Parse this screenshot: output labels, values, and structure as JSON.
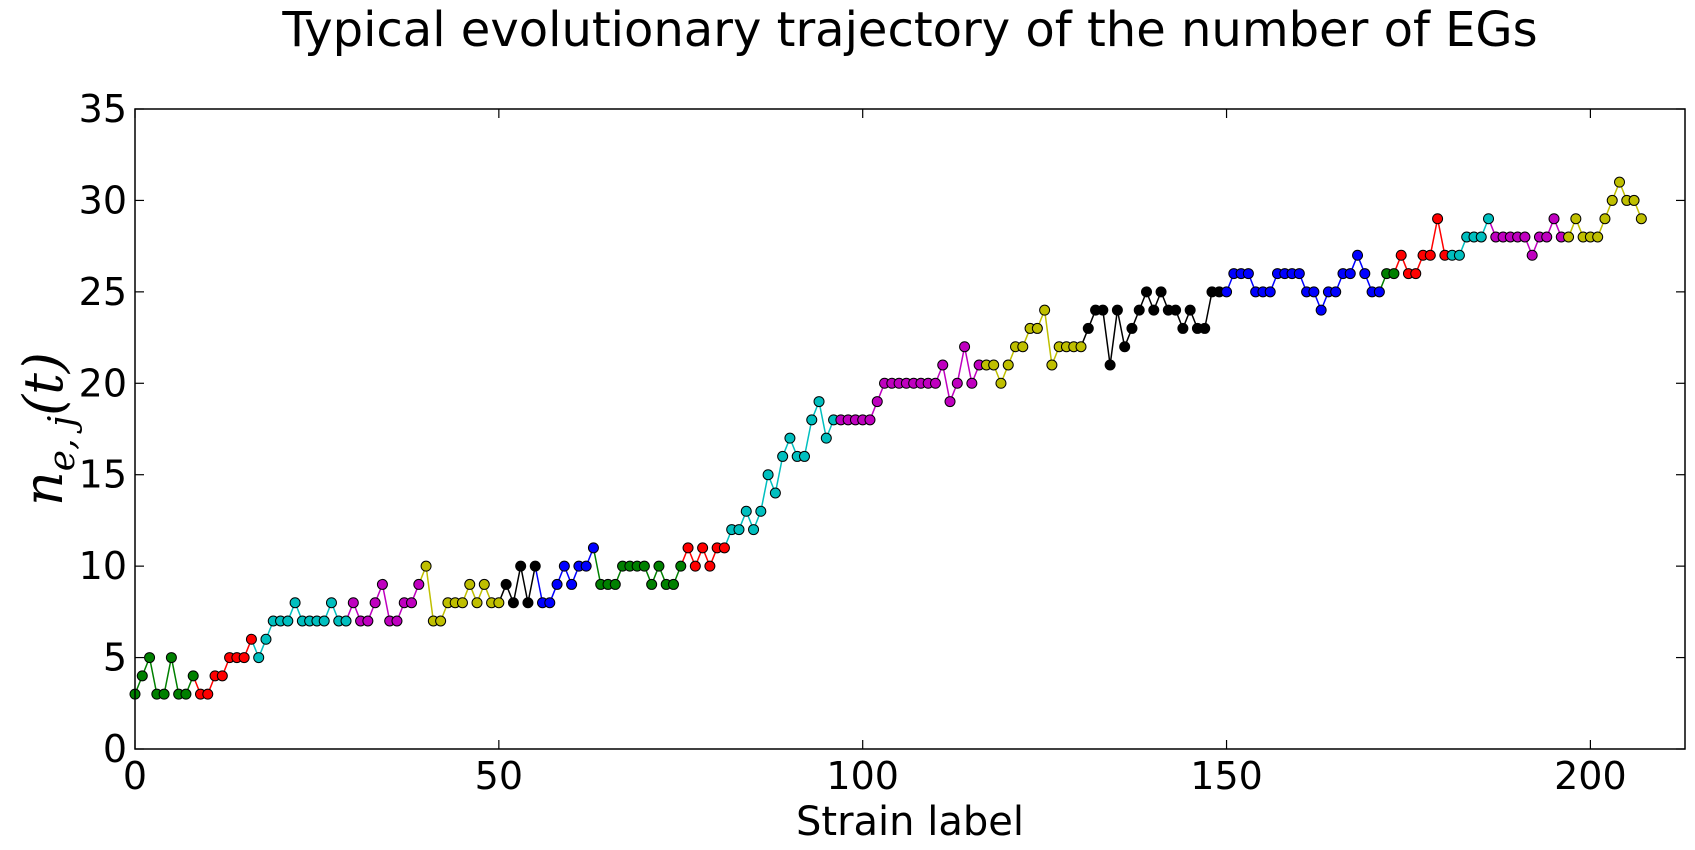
{
  "chart_data": {
    "type": "line",
    "title": "Typical evolutionary trajectory of the number of EGs",
    "xlabel": "Strain label",
    "ylabel": "n",
    "ylabel_sub": "e, j",
    "ylabel_arg": "(t)",
    "xlim": [
      0,
      213
    ],
    "ylim": [
      0,
      35
    ],
    "xticks": [
      0,
      50,
      100,
      150,
      200
    ],
    "yticks": [
      0,
      5,
      10,
      15,
      20,
      25,
      30,
      35
    ],
    "grid": false,
    "markers": true,
    "segment_colors": [
      "#008000",
      "#ff0000",
      "#00bfbf",
      "#bf00bf",
      "#bfbf00",
      "#000000",
      "#0000ff",
      "#008000",
      "#ff0000",
      "#00bfbf",
      "#bf00bf",
      "#bfbf00",
      "#000000",
      "#0000ff",
      "#008000",
      "#ff0000",
      "#00bfbf",
      "#bf00bf",
      "#bfbf00"
    ],
    "segments": [
      {
        "x": [
          0,
          1,
          2,
          3,
          4,
          5,
          6,
          7,
          8
        ],
        "y": [
          3,
          4,
          5,
          3,
          3,
          5,
          3,
          3,
          4
        ]
      },
      {
        "x": [
          9,
          10,
          11,
          12,
          13,
          14,
          15,
          16
        ],
        "y": [
          3,
          3,
          4,
          4,
          5,
          5,
          5,
          6
        ]
      },
      {
        "x": [
          17,
          18,
          19,
          20,
          21,
          22,
          23,
          24,
          25,
          26,
          27,
          28,
          29
        ],
        "y": [
          5,
          6,
          7,
          7,
          7,
          8,
          7,
          7,
          7,
          7,
          8,
          7,
          7
        ]
      },
      {
        "x": [
          30,
          31,
          32,
          33,
          34,
          35,
          36,
          37,
          38,
          39
        ],
        "y": [
          8,
          7,
          7,
          8,
          9,
          7,
          7,
          8,
          8,
          9
        ]
      },
      {
        "x": [
          40,
          41,
          42,
          43,
          44,
          45,
          46,
          47,
          48,
          49,
          50
        ],
        "y": [
          10,
          7,
          7,
          8,
          8,
          8,
          9,
          8,
          9,
          8,
          8
        ]
      },
      {
        "x": [
          51,
          52,
          53,
          54,
          55
        ],
        "y": [
          9,
          8,
          10,
          8,
          10
        ]
      },
      {
        "x": [
          56,
          57,
          58,
          59,
          60,
          61,
          62,
          63
        ],
        "y": [
          8,
          8,
          9,
          10,
          9,
          10,
          10,
          11
        ]
      },
      {
        "x": [
          64,
          65,
          66,
          67,
          68,
          69,
          70,
          71,
          72,
          73,
          74,
          75
        ],
        "y": [
          9,
          9,
          9,
          10,
          10,
          10,
          10,
          9,
          10,
          9,
          9,
          10
        ]
      },
      {
        "x": [
          76,
          77,
          78,
          79,
          80,
          81
        ],
        "y": [
          11,
          10,
          11,
          10,
          11,
          11
        ]
      },
      {
        "x": [
          82,
          83,
          84,
          85,
          86,
          87,
          88,
          89,
          90,
          91,
          92,
          93,
          94,
          95,
          96
        ],
        "y": [
          12,
          12,
          13,
          12,
          13,
          15,
          14,
          16,
          17,
          16,
          16,
          18,
          19,
          17,
          18
        ]
      },
      {
        "x": [
          97,
          98,
          99,
          100,
          101,
          102,
          103,
          104,
          105,
          106,
          107,
          108,
          109,
          110,
          111,
          112,
          113,
          114,
          115,
          116
        ],
        "y": [
          18,
          18,
          18,
          18,
          18,
          19,
          20,
          20,
          20,
          20,
          20,
          20,
          20,
          20,
          21,
          19,
          20,
          22,
          20,
          21
        ]
      },
      {
        "x": [
          117,
          118,
          119,
          120,
          121,
          122,
          123,
          124,
          125,
          126,
          127,
          128,
          129,
          130
        ],
        "y": [
          21,
          21,
          20,
          21,
          22,
          22,
          23,
          23,
          24,
          21,
          22,
          22,
          22,
          22
        ]
      },
      {
        "x": [
          131,
          132,
          133,
          134,
          135,
          136,
          137,
          138,
          139,
          140,
          141,
          142,
          143,
          144,
          145,
          146,
          147,
          148,
          149
        ],
        "y": [
          23,
          24,
          24,
          21,
          24,
          22,
          23,
          24,
          25,
          24,
          25,
          24,
          24,
          23,
          24,
          23,
          23,
          25,
          25
        ]
      },
      {
        "x": [
          150,
          151,
          152,
          153,
          154,
          155,
          156,
          157,
          158,
          159,
          160,
          161,
          162,
          163,
          164,
          165,
          166,
          167,
          168,
          169,
          170,
          171
        ],
        "y": [
          25,
          26,
          26,
          26,
          25,
          25,
          25,
          26,
          26,
          26,
          26,
          25,
          25,
          24,
          25,
          25,
          26,
          26,
          27,
          26,
          25,
          25
        ]
      },
      {
        "x": [
          172,
          173
        ],
        "y": [
          26,
          26
        ]
      },
      {
        "x": [
          174,
          175,
          176,
          177,
          178,
          179,
          180
        ],
        "y": [
          27,
          26,
          26,
          27,
          27,
          29,
          27
        ]
      },
      {
        "x": [
          181,
          182,
          183,
          184,
          185,
          186
        ],
        "y": [
          27,
          27,
          28,
          28,
          28,
          29
        ]
      },
      {
        "x": [
          187,
          188,
          189,
          190,
          191,
          192,
          193,
          194,
          195,
          196
        ],
        "y": [
          28,
          28,
          28,
          28,
          28,
          27,
          28,
          28,
          29,
          28
        ]
      },
      {
        "x": [
          197,
          198,
          199,
          200,
          201,
          202,
          203,
          204,
          205,
          206,
          207
        ],
        "y": [
          28,
          29,
          28,
          28,
          28,
          29,
          30,
          31,
          30,
          30,
          29
        ]
      }
    ]
  }
}
